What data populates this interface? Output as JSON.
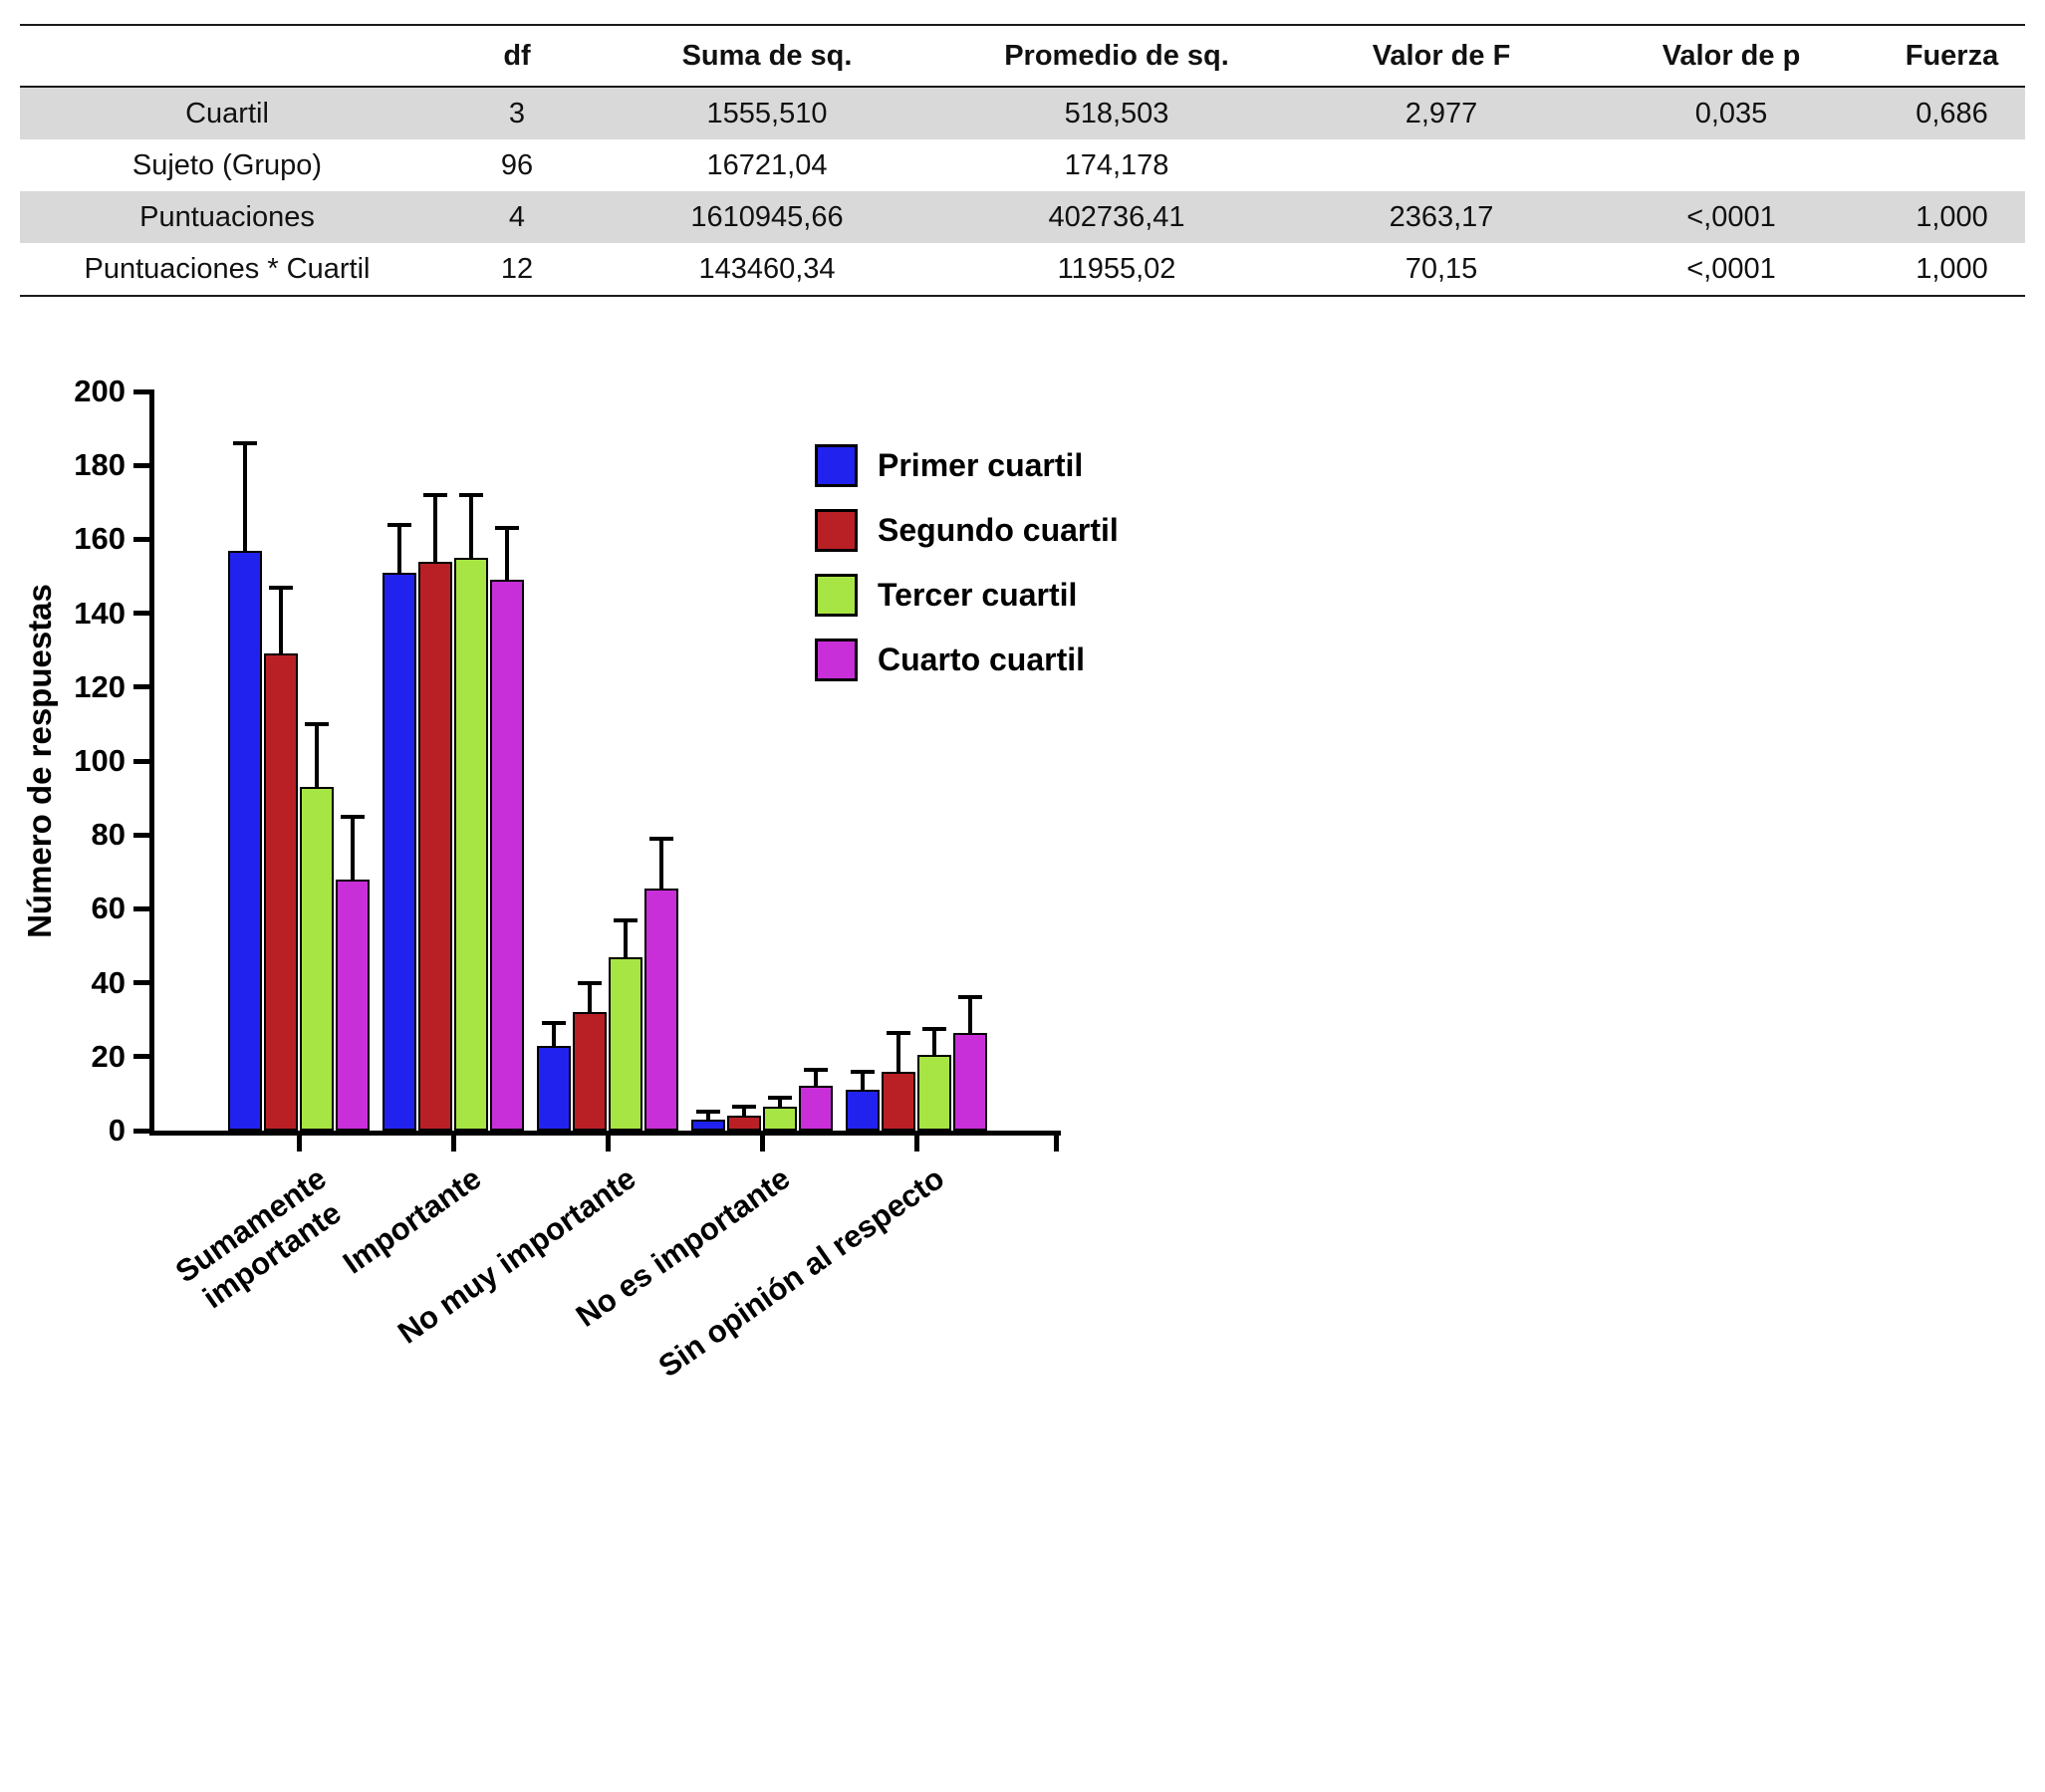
{
  "table": {
    "headers": [
      "",
      "df",
      "Suma de sq.",
      "Promedio de sq.",
      "Valor de F",
      "Valor de p",
      "Fuerza"
    ],
    "rows": [
      {
        "label": "Cuartil",
        "shaded": true,
        "values": [
          "3",
          "1555,510",
          "518,503",
          "2,977",
          "0,035",
          "0,686"
        ]
      },
      {
        "label": "Sujeto (Grupo)",
        "shaded": false,
        "values": [
          "96",
          "16721,04",
          "174,178",
          "",
          "",
          ""
        ]
      },
      {
        "label": "Puntuaciones",
        "shaded": true,
        "values": [
          "4",
          "1610945,66",
          "402736,41",
          "2363,17",
          "<,0001",
          "1,000"
        ]
      },
      {
        "label": "Puntuaciones * Cuartil",
        "shaded": false,
        "values": [
          "12",
          "143460,34",
          "11955,02",
          "70,15",
          "<,0001",
          "1,000"
        ]
      }
    ]
  },
  "chart_data": {
    "type": "bar",
    "ylabel": "Número de respuestas",
    "ylim": [
      0,
      200
    ],
    "ytick_step": 20,
    "grid": false,
    "legend_position": "top-right",
    "categories": [
      "Sumamente\nimportante",
      "Importante",
      "No muy importante",
      "No es importante",
      "Sin opinión al respecto"
    ],
    "series": [
      {
        "name": "Primer cuartil",
        "color": "#2222ee",
        "values": [
          157,
          151,
          23,
          3,
          11
        ],
        "errors": [
          29,
          13,
          6,
          2,
          5
        ]
      },
      {
        "name": "Segundo cuartil",
        "color": "#b92025",
        "values": [
          129,
          154,
          32,
          4,
          16
        ],
        "errors": [
          18,
          18,
          8,
          2.5,
          10.5
        ]
      },
      {
        "name": "Tercer cuartil",
        "color": "#a7e544",
        "values": [
          93,
          155,
          47,
          6.5,
          20.5
        ],
        "errors": [
          17,
          17,
          10,
          2.5,
          7
        ]
      },
      {
        "name": "Cuarto cuartil",
        "color": "#c92fd9",
        "values": [
          68,
          149,
          65.5,
          12,
          26.5
        ],
        "errors": [
          17,
          14,
          13.5,
          4.5,
          9.5
        ]
      }
    ]
  }
}
